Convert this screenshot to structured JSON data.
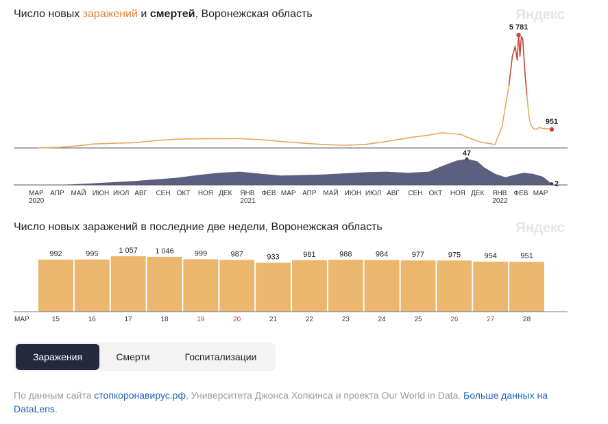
{
  "chart1": {
    "title": {
      "part1": "Число новых ",
      "infections": "заражений",
      "part2": " и ",
      "deaths": "смертей",
      "part3": ", Воронежская область"
    },
    "logo": "Яндекс"
  },
  "chart2": {
    "title": "Число новых заражений в последние две недели, Воронежская область",
    "logo": "Яндекс"
  },
  "colors": {
    "infections_line": "#e8a65e",
    "infections_line_peak": "#c2443a",
    "deaths_area": "#3f4468",
    "bar": "#ebb66e",
    "weekend": "#c0392b",
    "tab_active": "#26283f"
  },
  "chart_data": [
    {
      "type": "line",
      "series": [
        {
          "name": "заражений",
          "x": [
            "2020-03-15",
            "2020-04-15",
            "2020-05-15",
            "2020-06-01",
            "2020-07-01",
            "2020-08-01",
            "2020-09-01",
            "2020-10-01",
            "2020-11-01",
            "2020-12-01",
            "2021-01-01",
            "2021-02-01",
            "2021-03-01",
            "2021-04-01",
            "2021-05-01",
            "2021-06-01",
            "2021-07-01",
            "2021-08-01",
            "2021-09-01",
            "2021-10-01",
            "2021-10-20",
            "2021-11-15",
            "2021-12-01",
            "2021-12-15",
            "2022-01-05",
            "2022-01-15",
            "2022-01-25",
            "2022-01-30",
            "2022-02-03",
            "2022-02-06",
            "2022-02-08",
            "2022-02-10",
            "2022-02-12",
            "2022-02-14",
            "2022-02-17",
            "2022-02-20",
            "2022-02-23",
            "2022-02-26",
            "2022-03-01",
            "2022-03-05",
            "2022-03-10",
            "2022-03-15",
            "2022-03-20",
            "2022-03-28"
          ],
          "values": [
            5,
            30,
            120,
            200,
            240,
            270,
            380,
            450,
            470,
            470,
            480,
            420,
            330,
            250,
            180,
            140,
            180,
            330,
            520,
            660,
            780,
            700,
            480,
            300,
            180,
            1100,
            3200,
            4700,
            5200,
            4500,
            5781,
            4700,
            5700,
            5600,
            3900,
            2700,
            1600,
            1150,
            1000,
            950,
            1050,
            1000,
            990,
            951
          ]
        },
        {
          "name": "смертей",
          "x": [
            "2020-04-01",
            "2020-05-01",
            "2020-06-01",
            "2020-07-01",
            "2020-08-01",
            "2020-09-01",
            "2020-10-01",
            "2020-11-01",
            "2020-12-01",
            "2021-01-01",
            "2021-02-01",
            "2021-03-01",
            "2021-04-01",
            "2021-05-01",
            "2021-06-01",
            "2021-07-01",
            "2021-08-01",
            "2021-09-01",
            "2021-10-01",
            "2021-10-20",
            "2021-11-10",
            "2021-11-25",
            "2021-12-10",
            "2021-12-20",
            "2022-01-05",
            "2022-01-20",
            "2022-02-01",
            "2022-02-15",
            "2022-03-01",
            "2022-03-15",
            "2022-03-28"
          ],
          "values": [
            0,
            1,
            3,
            5,
            7,
            10,
            13,
            18,
            22,
            24,
            20,
            17,
            18,
            19,
            21,
            23,
            24,
            22,
            24,
            34,
            44,
            47,
            43,
            32,
            20,
            14,
            18,
            22,
            20,
            15,
            2
          ]
        }
      ],
      "annotations": [
        {
          "date": "2022-02-08",
          "label": "5 781"
        },
        {
          "date": "2022-03-28",
          "label": "951"
        },
        {
          "date": "2021-11-25",
          "label": "47"
        },
        {
          "date": "2022-03-28",
          "label": "2"
        }
      ],
      "ylim": [
        0,
        6100
      ],
      "deaths_ylim": [
        0,
        52
      ],
      "xlim": [
        "2020-03-01",
        "2022-03-31"
      ],
      "x_ticks": [
        {
          "date": "2020-03-01",
          "label": "МАР",
          "year": "2020"
        },
        {
          "date": "2020-04-01",
          "label": "АПР"
        },
        {
          "date": "2020-05-01",
          "label": "МАЙ"
        },
        {
          "date": "2020-06-01",
          "label": "ИЮН"
        },
        {
          "date": "2020-07-01",
          "label": "ИЮЛ"
        },
        {
          "date": "2020-08-01",
          "label": "АВГ"
        },
        {
          "date": "2020-09-01",
          "label": "СЕН"
        },
        {
          "date": "2020-10-01",
          "label": "ОКТ"
        },
        {
          "date": "2020-11-01",
          "label": "НОЯ"
        },
        {
          "date": "2020-12-01",
          "label": "ДЕК"
        },
        {
          "date": "2021-01-01",
          "label": "ЯНВ",
          "year": "2021"
        },
        {
          "date": "2021-02-01",
          "label": "ФЕВ"
        },
        {
          "date": "2021-03-01",
          "label": "МАР"
        },
        {
          "date": "2021-04-01",
          "label": "АПР"
        },
        {
          "date": "2021-05-01",
          "label": "МАЙ"
        },
        {
          "date": "2021-06-01",
          "label": "ИЮН"
        },
        {
          "date": "2021-07-01",
          "label": "ИЮЛ"
        },
        {
          "date": "2021-08-01",
          "label": "АВГ"
        },
        {
          "date": "2021-09-01",
          "label": "СЕН"
        },
        {
          "date": "2021-10-01",
          "label": "ОКТ"
        },
        {
          "date": "2021-11-01",
          "label": "НОЯ"
        },
        {
          "date": "2021-12-01",
          "label": "ДЕК"
        },
        {
          "date": "2022-01-01",
          "label": "ЯНВ",
          "year": "2022"
        },
        {
          "date": "2022-02-01",
          "label": "ФЕВ"
        },
        {
          "date": "2022-03-01",
          "label": "МАР"
        }
      ]
    },
    {
      "type": "bar",
      "month_label": "МАР",
      "categories": [
        "15",
        "16",
        "17",
        "18",
        "19",
        "20",
        "21",
        "22",
        "23",
        "24",
        "25",
        "26",
        "27",
        "28"
      ],
      "values": [
        992,
        995,
        1057,
        1046,
        999,
        987,
        933,
        981,
        988,
        984,
        977,
        975,
        954,
        951
      ],
      "value_labels": [
        "992",
        "995",
        "1 057",
        "1 046",
        "999",
        "987",
        "933",
        "981",
        "988",
        "984",
        "977",
        "975",
        "954",
        "951"
      ],
      "weekend_categories": [
        "19",
        "20",
        "26",
        "27"
      ],
      "ylim": [
        0,
        1110
      ]
    }
  ],
  "tabs": [
    {
      "label": "Заражения",
      "active": true
    },
    {
      "label": "Смерти",
      "active": false
    },
    {
      "label": "Госпитализации",
      "active": false
    }
  ],
  "footer": {
    "prefix": "По данным сайта ",
    "link1": "стопкоронавирус.рф",
    "middle": ", Университета Джонса Хопкинса и проекта Our World in Data. ",
    "link2": "Больше данных на DataLens",
    "suffix": "."
  }
}
